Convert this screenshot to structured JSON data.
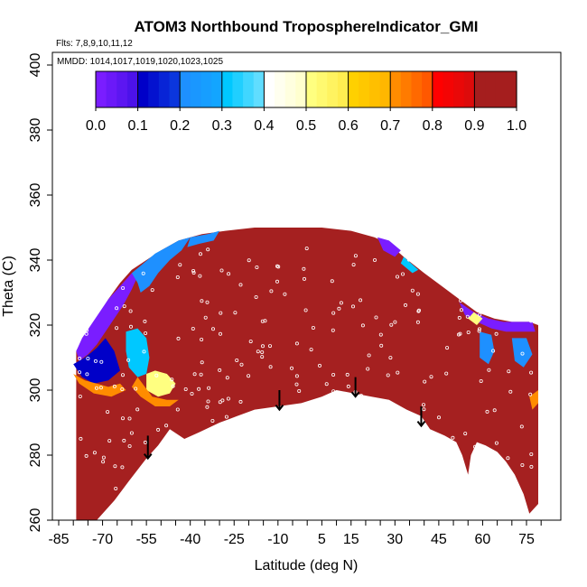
{
  "chart_data": {
    "type": "heatmap",
    "title": "ATOM3 Northbound TroposphereIndicator_GMI",
    "subtitle_flights": "Flts: 7,8,9,10,11,12",
    "subtitle_dates": "MMDD: 1014,1017,1019,1020,1023,1025",
    "xlabel": "Latitude (deg N)",
    "ylabel": "Theta (C)",
    "xlim": [
      -85,
      80
    ],
    "ylim": [
      260,
      405
    ],
    "x_ticks": [
      "-85",
      "-70",
      "-55",
      "-40",
      "-25",
      "-10",
      "5",
      "15",
      "30",
      "45",
      "60",
      "75"
    ],
    "x_tick_values": [
      -85,
      -70,
      -55,
      -40,
      -25,
      -10,
      5,
      15,
      30,
      45,
      60,
      75
    ],
    "y_ticks": [
      "260",
      "280",
      "300",
      "320",
      "340",
      "360",
      "380",
      "400"
    ],
    "y_tick_values": [
      260,
      280,
      300,
      320,
      340,
      360,
      380,
      400
    ],
    "colorbar": {
      "ticks": [
        "0.0",
        "0.1",
        "0.2",
        "0.3",
        "0.4",
        "0.5",
        "0.6",
        "0.7",
        "0.8",
        "0.9",
        "1.0"
      ],
      "tick_values": [
        0.0,
        0.1,
        0.2,
        0.3,
        0.4,
        0.5,
        0.6,
        0.7,
        0.8,
        0.9,
        1.0
      ],
      "range": [
        0,
        1
      ],
      "colors": [
        "#7a1dff",
        "#0000c8",
        "#1e90ff",
        "#00c8ff",
        "#ffffff",
        "#ffff80",
        "#ffd000",
        "#ff8c00",
        "#ff0000",
        "#a51e1e"
      ]
    },
    "fill_color": "#a52020",
    "upper_boundary": [
      [
        -79,
        312
      ],
      [
        -76,
        317
      ],
      [
        -72,
        322
      ],
      [
        -68,
        328
      ],
      [
        -64,
        333
      ],
      [
        -60,
        337
      ],
      [
        -55,
        340
      ],
      [
        -50,
        343
      ],
      [
        -44,
        346
      ],
      [
        -36,
        348
      ],
      [
        -28,
        349
      ],
      [
        -18,
        350
      ],
      [
        -6,
        350
      ],
      [
        5,
        350
      ],
      [
        15,
        349
      ],
      [
        23,
        347
      ],
      [
        28,
        345
      ],
      [
        33,
        341
      ],
      [
        40,
        336
      ],
      [
        46,
        332
      ],
      [
        52,
        328
      ],
      [
        58,
        324
      ],
      [
        64,
        322
      ],
      [
        70,
        321
      ],
      [
        76,
        321
      ],
      [
        79,
        320
      ]
    ],
    "lower_boundary": [
      [
        79,
        265
      ],
      [
        76,
        262
      ],
      [
        74,
        268
      ],
      [
        71,
        274
      ],
      [
        68,
        278
      ],
      [
        65,
        281
      ],
      [
        61,
        283
      ],
      [
        58,
        284
      ],
      [
        56,
        280
      ],
      [
        55,
        274
      ],
      [
        53,
        280
      ],
      [
        51,
        284
      ],
      [
        47,
        286
      ],
      [
        42,
        288
      ],
      [
        39,
        292
      ],
      [
        34,
        294
      ],
      [
        28,
        297
      ],
      [
        22,
        298
      ],
      [
        16,
        299
      ],
      [
        10,
        300
      ],
      [
        5,
        298
      ],
      [
        -2,
        296
      ],
      [
        -10,
        295
      ],
      [
        -18,
        294
      ],
      [
        -24,
        292
      ],
      [
        -30,
        290
      ],
      [
        -37,
        287
      ],
      [
        -42,
        285
      ],
      [
        -47,
        288
      ],
      [
        -51,
        283
      ],
      [
        -55,
        279
      ],
      [
        -61,
        272
      ],
      [
        -66,
        266
      ],
      [
        -70,
        262
      ],
      [
        -72,
        260
      ],
      [
        -79,
        260
      ]
    ],
    "low_value_regions": [
      {
        "value": 0.05,
        "polygon": [
          [
            -79,
            312
          ],
          [
            -77,
            316
          ],
          [
            -74,
            320
          ],
          [
            -71,
            324
          ],
          [
            -68,
            328
          ],
          [
            -65,
            331
          ],
          [
            -62,
            334
          ],
          [
            -60,
            336
          ],
          [
            -58,
            335
          ],
          [
            -60,
            331
          ],
          [
            -63,
            326
          ],
          [
            -66,
            322
          ],
          [
            -69,
            318
          ],
          [
            -72,
            314
          ],
          [
            -75,
            311
          ],
          [
            -78,
            309
          ]
        ]
      },
      {
        "value": 0.2,
        "polygon": [
          [
            -60,
            336
          ],
          [
            -56,
            339
          ],
          [
            -52,
            342
          ],
          [
            -48,
            344
          ],
          [
            -44,
            346
          ],
          [
            -40,
            347
          ],
          [
            -43,
            343
          ],
          [
            -47,
            340
          ],
          [
            -51,
            336
          ],
          [
            -54,
            332
          ],
          [
            -57,
            330
          ],
          [
            -58,
            333
          ]
        ]
      },
      {
        "value": 0.25,
        "polygon": [
          [
            -40,
            347
          ],
          [
            -34,
            348
          ],
          [
            -30,
            349
          ],
          [
            -32,
            346
          ],
          [
            -37,
            345
          ],
          [
            -41,
            344
          ]
        ]
      },
      {
        "value": 0.15,
        "polygon": [
          [
            -80,
            308
          ],
          [
            -76,
            310
          ],
          [
            -72,
            313
          ],
          [
            -69,
            316
          ],
          [
            -66,
            312
          ],
          [
            -64,
            306
          ],
          [
            -68,
            303
          ],
          [
            -73,
            302
          ],
          [
            -77,
            304
          ]
        ]
      },
      {
        "value": 0.75,
        "polygon": [
          [
            -80,
            305
          ],
          [
            -76,
            303
          ],
          [
            -72,
            302
          ],
          [
            -68,
            301
          ],
          [
            -64,
            302
          ],
          [
            -62,
            300
          ],
          [
            -67,
            298
          ],
          [
            -73,
            299
          ],
          [
            -78,
            302
          ]
        ]
      },
      {
        "value": 0.3,
        "polygon": [
          [
            -62,
            318
          ],
          [
            -58,
            319
          ],
          [
            -55,
            316
          ],
          [
            -54,
            310
          ],
          [
            -55,
            305
          ],
          [
            -58,
            304
          ],
          [
            -61,
            307
          ],
          [
            -62,
            312
          ]
        ]
      },
      {
        "value": 0.5,
        "polygon": [
          [
            -55,
            305
          ],
          [
            -52,
            306
          ],
          [
            -48,
            305
          ],
          [
            -45,
            302
          ],
          [
            -47,
            299
          ],
          [
            -51,
            298
          ],
          [
            -55,
            300
          ]
        ]
      },
      {
        "value": 0.75,
        "polygon": [
          [
            -58,
            304
          ],
          [
            -53,
            298
          ],
          [
            -48,
            297
          ],
          [
            -44,
            297
          ],
          [
            -47,
            295
          ],
          [
            -52,
            295
          ],
          [
            -57,
            298
          ],
          [
            -60,
            301
          ]
        ]
      },
      {
        "value": 0.05,
        "polygon": [
          [
            24,
            347
          ],
          [
            28,
            346
          ],
          [
            32,
            343
          ],
          [
            30,
            341
          ],
          [
            26,
            343
          ]
        ]
      },
      {
        "value": 0.3,
        "polygon": [
          [
            33,
            341
          ],
          [
            38,
            337
          ],
          [
            36,
            336
          ],
          [
            32,
            339
          ]
        ]
      },
      {
        "value": 0.05,
        "polygon": [
          [
            52,
            327
          ],
          [
            57,
            324
          ],
          [
            62,
            322
          ],
          [
            67,
            321
          ],
          [
            72,
            321
          ],
          [
            77,
            321
          ],
          [
            78,
            318
          ],
          [
            73,
            318
          ],
          [
            68,
            318
          ],
          [
            63,
            319
          ],
          [
            58,
            321
          ],
          [
            54,
            323
          ]
        ]
      },
      {
        "value": 0.2,
        "polygon": [
          [
            59,
            318
          ],
          [
            63,
            317
          ],
          [
            64,
            312
          ],
          [
            62,
            308
          ],
          [
            59,
            310
          ]
        ]
      },
      {
        "value": 0.25,
        "polygon": [
          [
            70,
            316
          ],
          [
            75,
            316
          ],
          [
            77,
            311
          ],
          [
            74,
            307
          ],
          [
            71,
            309
          ]
        ]
      },
      {
        "value": 0.5,
        "polygon": [
          [
            57,
            324
          ],
          [
            60,
            322
          ],
          [
            58,
            320
          ],
          [
            55,
            322
          ]
        ]
      },
      {
        "value": 0.75,
        "polygon": [
          [
            76,
            298
          ],
          [
            79,
            300
          ],
          [
            79,
            296
          ],
          [
            77,
            294
          ]
        ]
      }
    ],
    "arrows": [
      {
        "lat": -54.5,
        "theta_top": 286,
        "theta_bottom": 279
      },
      {
        "lat": -9.5,
        "theta_top": 300,
        "theta_bottom": 294
      },
      {
        "lat": 16.5,
        "theta_top": 304,
        "theta_bottom": 298
      },
      {
        "lat": 39,
        "theta_top": 295,
        "theta_bottom": 289
      }
    ]
  }
}
